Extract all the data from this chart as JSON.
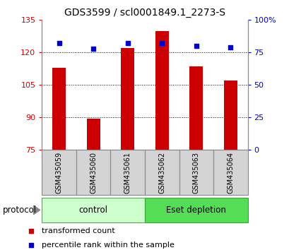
{
  "title": "GDS3599 / scl0001849.1_2273-S",
  "samples": [
    "GSM435059",
    "GSM435060",
    "GSM435061",
    "GSM435062",
    "GSM435063",
    "GSM435064"
  ],
  "bar_values": [
    113.0,
    89.5,
    122.0,
    130.0,
    113.5,
    107.0
  ],
  "scatter_values": [
    82,
    78,
    82,
    82,
    80,
    79
  ],
  "ylim_left": [
    75,
    135
  ],
  "ylim_right": [
    0,
    100
  ],
  "yticks_left": [
    75,
    90,
    105,
    120,
    135
  ],
  "yticks_right": [
    0,
    25,
    50,
    75,
    100
  ],
  "ytick_labels_right": [
    "0",
    "25",
    "50",
    "75",
    "100%"
  ],
  "bar_color": "#cc0000",
  "scatter_color": "#0000cc",
  "bar_baseline": 75,
  "gridlines": [
    90,
    105,
    120
  ],
  "ctrl_color": "#ccffcc",
  "eset_color": "#55dd55",
  "sample_box_color": "#d4d4d4",
  "protocol_label": "protocol",
  "legend_bar_label": "transformed count",
  "legend_scatter_label": "percentile rank within the sample",
  "title_fontsize": 10,
  "tick_fontsize": 8,
  "axis_label_color_left": "#cc0000",
  "axis_label_color_right": "#0000cc"
}
